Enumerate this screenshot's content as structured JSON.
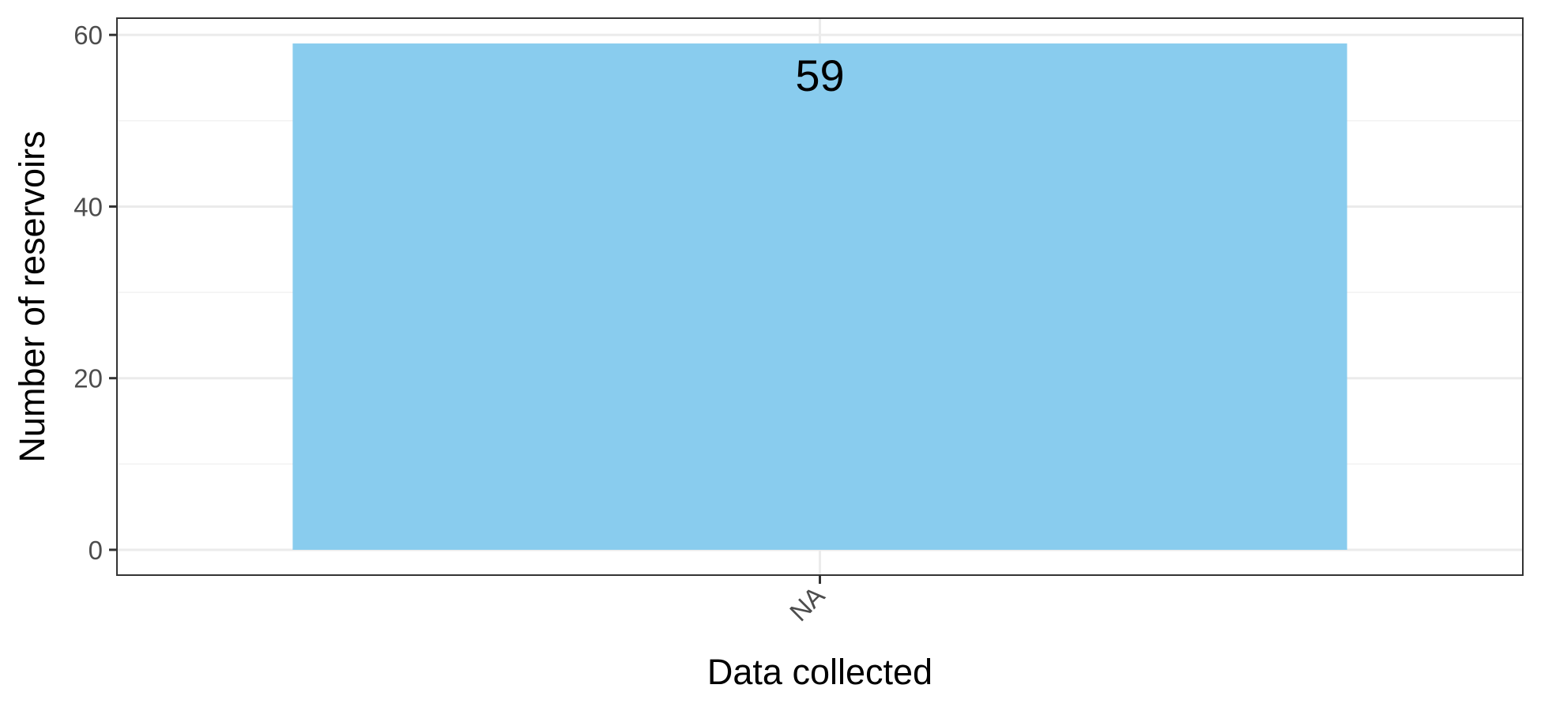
{
  "colors": {
    "bar": "#89CCEE",
    "panel_border": "#333333",
    "grid_major": "#EBEBEB",
    "grid_minor": "#F2F2F2",
    "tick_text": "#4D4D4D",
    "tick_mark": "#333333"
  },
  "chart_data": {
    "type": "bar",
    "categories": [
      "NA"
    ],
    "values": [
      59
    ],
    "data_labels": [
      "59"
    ],
    "xlabel": "Data collected",
    "ylabel": "Number of reservoirs",
    "ylim": [
      -2.95,
      61.95
    ],
    "y_ticks": [
      0,
      20,
      40,
      60
    ],
    "y_tick_labels": [
      "0",
      "20",
      "40",
      "60"
    ],
    "y_minor_ticks": [
      10,
      30,
      50
    ],
    "x_tick_rotation_deg": -45,
    "grid": true,
    "legend": "none"
  }
}
